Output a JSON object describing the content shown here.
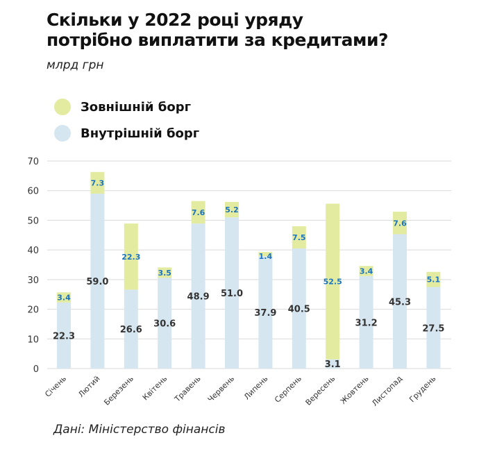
{
  "title_line1": "Скільки у 2022 році уряду",
  "title_line2": "потрібно виплатити за кредитами?",
  "subtitle": "млрд грн",
  "source": "Дані: Міністерство фінансів",
  "legend": [
    {
      "label": "Зовнішній борг",
      "color": "#e3eba0"
    },
    {
      "label": "Внутрішній борг",
      "color": "#d6e6f0"
    }
  ],
  "colors": {
    "external": "#e3eba0",
    "internal": "#d6e6f0",
    "external_label": "#1a73c2",
    "internal_label": "#333333",
    "grid": "#d9d9d9"
  },
  "chart_data": {
    "type": "bar",
    "stacked": true,
    "title": "Скільки у 2022 році уряду потрібно виплатити за кредитами?",
    "ylabel": "млрд грн",
    "xlabel": "",
    "ylim": [
      0,
      70
    ],
    "yticks": [
      0,
      10,
      20,
      30,
      40,
      50,
      60,
      70
    ],
    "grid": true,
    "legend_position": "top-left",
    "categories": [
      "Січень",
      "Лютий",
      "Березень",
      "Квітень",
      "Травень",
      "Червень",
      "Липень",
      "Серпень",
      "Вересень",
      "Жовтень",
      "Листопад",
      "Грудень"
    ],
    "series": [
      {
        "name": "Внутрішній борг",
        "values": [
          22.3,
          59.0,
          26.6,
          30.6,
          48.9,
          51.0,
          37.9,
          40.5,
          3.1,
          31.2,
          45.3,
          27.5
        ],
        "labels": [
          "22.3",
          "59.0",
          "26.6",
          "30.6",
          "48.9",
          "51.0",
          "37.9",
          "40.5",
          "3.1",
          "31.2",
          "45.3",
          "27.5"
        ]
      },
      {
        "name": "Зовнішній борг",
        "values": [
          3.4,
          7.3,
          22.3,
          3.5,
          7.6,
          5.2,
          1.4,
          7.5,
          52.5,
          3.4,
          7.6,
          5.1
        ],
        "labels": [
          "3.4",
          "7.3",
          "22.3",
          "3.5",
          "7.6",
          "5.2",
          "1.4",
          "7.5",
          "52.5",
          "3.4",
          "7.6",
          "5.1"
        ]
      }
    ]
  }
}
